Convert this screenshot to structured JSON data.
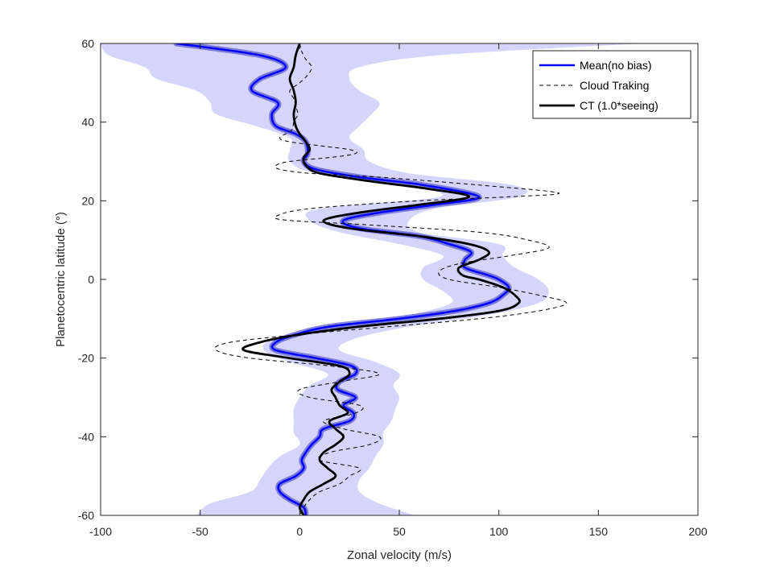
{
  "chart_data": {
    "type": "line",
    "xlabel": "Zonal velocity (m/s)",
    "ylabel": "Planetocentric latitude (°)",
    "xlim": [
      -100,
      200
    ],
    "ylim": [
      -60,
      60
    ],
    "xticks": [
      -100,
      -50,
      0,
      50,
      100,
      150,
      200
    ],
    "yticks": [
      -60,
      -40,
      -20,
      0,
      20,
      40,
      60
    ],
    "xtick_labels": [
      "-100",
      "-50",
      "0",
      "50",
      "100",
      "150",
      "200"
    ],
    "ytick_labels": [
      "-60",
      "-40",
      "-20",
      "0",
      "20",
      "40",
      "60"
    ],
    "grid": false,
    "legend_position": "top-right",
    "band": {
      "latitude": [
        60,
        57,
        54,
        51,
        48,
        45,
        42,
        39,
        36,
        33,
        30,
        27,
        24,
        21,
        18,
        15,
        12,
        9,
        6,
        3,
        0,
        -3,
        -6,
        -9,
        -12,
        -15,
        -18,
        -21,
        -24,
        -27,
        -30,
        -33,
        -36,
        -39,
        -42,
        -45,
        -48,
        -51,
        -54,
        -57,
        -60
      ],
      "lower": [
        -100,
        -96,
        -78,
        -72,
        -52,
        -45,
        -42,
        -22,
        -5,
        -5,
        -5,
        8,
        52,
        70,
        10,
        5,
        20,
        50,
        72,
        62,
        62,
        72,
        76,
        55,
        20,
        -12,
        -18,
        -5,
        14,
        5,
        0,
        -3,
        -3,
        -3,
        0,
        -10,
        -16,
        -20,
        -25,
        -45,
        -52
      ],
      "upper": [
        172,
        70,
        30,
        25,
        30,
        40,
        36,
        30,
        25,
        32,
        35,
        55,
        107,
        110,
        68,
        55,
        60,
        100,
        102,
        108,
        120,
        125,
        120,
        95,
        55,
        28,
        20,
        38,
        50,
        47,
        50,
        48,
        46,
        42,
        42,
        38,
        35,
        30,
        30,
        40,
        58
      ]
    },
    "series": [
      {
        "name": "Mean(no bias)",
        "color": "#0000ff",
        "style": "solid",
        "latitude": [
          60,
          57,
          54,
          51,
          48,
          45,
          42,
          39,
          37,
          35,
          32,
          30,
          28,
          26,
          24,
          21,
          19,
          17,
          15,
          13,
          11,
          9,
          7,
          5,
          3,
          1,
          0,
          -2,
          -4,
          -6,
          -8,
          -10,
          -12,
          -14,
          -16,
          -18,
          -20,
          -22,
          -24,
          -26,
          -28,
          -30,
          -32,
          -34,
          -36,
          -38,
          -40,
          -42,
          -44,
          -46,
          -48,
          -50,
          -52,
          -54,
          -56,
          -58,
          -60
        ],
        "velocity": [
          -62,
          -20,
          -7,
          -20,
          -24,
          -11,
          -14,
          -12,
          -2,
          3,
          4,
          2,
          8,
          30,
          62,
          90,
          68,
          40,
          22,
          30,
          60,
          75,
          86,
          83,
          83,
          95,
          100,
          105,
          102,
          95,
          78,
          50,
          15,
          -2,
          -12,
          -12,
          8,
          26,
          28,
          20,
          19,
          28,
          22,
          27,
          25,
          12,
          10,
          6,
          3,
          1,
          2,
          -2,
          -10,
          -10,
          -5,
          2,
          3
        ]
      },
      {
        "name": "Cloud Traking",
        "color": "#000000",
        "style": "dashed",
        "latitude": [
          60,
          58,
          56,
          54,
          52,
          50,
          48,
          46,
          44,
          42,
          40,
          38,
          36,
          35,
          34,
          33,
          32,
          31,
          30,
          29,
          28,
          27,
          26,
          24,
          22,
          21,
          20,
          18,
          16,
          15,
          14,
          12,
          10,
          8,
          6,
          4,
          2,
          0,
          -2,
          -4,
          -6,
          -8,
          -10,
          -12,
          -14,
          -16,
          -18,
          -20,
          -22,
          -24,
          -26,
          -28,
          -30,
          -32,
          -34,
          -36,
          -38,
          -40,
          -42,
          -44,
          -46,
          -48,
          -50,
          -52,
          -54,
          -56,
          -58,
          -60
        ],
        "velocity": [
          0,
          1,
          3,
          6,
          4,
          0,
          -5,
          -3,
          -2,
          -1,
          -3,
          -4,
          -10,
          -5,
          10,
          25,
          28,
          15,
          -5,
          -12,
          -10,
          5,
          40,
          90,
          130,
          105,
          60,
          5,
          -12,
          -5,
          30,
          90,
          115,
          125,
          105,
          80,
          70,
          75,
          100,
          120,
          134,
          120,
          90,
          45,
          0,
          -35,
          -42,
          -25,
          15,
          40,
          20,
          0,
          5,
          30,
          28,
          12,
          22,
          40,
          35,
          15,
          10,
          30,
          25,
          20,
          10,
          5,
          2,
          0
        ]
      },
      {
        "name": "CT (1.0*seeing)",
        "color": "#000000",
        "style": "solid",
        "latitude": [
          60,
          57,
          54,
          51,
          48,
          45,
          42,
          39,
          37,
          35,
          33,
          31,
          29,
          27,
          25,
          23,
          21,
          19,
          17,
          15,
          13,
          11,
          9,
          7,
          5,
          3,
          1,
          0,
          -2,
          -4,
          -6,
          -8,
          -10,
          -12,
          -14,
          -16,
          -18,
          -20,
          -22,
          -24,
          -26,
          -28,
          -30,
          -32,
          -34,
          -36,
          -38,
          -40,
          -42,
          -44,
          -46,
          -48,
          -50,
          -52,
          -54,
          -56,
          -58,
          -60
        ],
        "velocity": [
          0,
          -2,
          -3,
          -5,
          -3,
          -2,
          -3,
          -2,
          0,
          3,
          5,
          2,
          3,
          10,
          35,
          65,
          85,
          60,
          30,
          12,
          25,
          60,
          85,
          95,
          90,
          80,
          82,
          90,
          102,
          108,
          110,
          100,
          70,
          30,
          0,
          -20,
          -28,
          -5,
          20,
          25,
          20,
          16,
          18,
          20,
          24,
          15,
          18,
          22,
          18,
          12,
          10,
          14,
          18,
          12,
          5,
          2,
          0,
          2
        ]
      }
    ],
    "legend": [
      "Mean(no bias)",
      "Cloud Traking",
      "CT (1.0*seeing)"
    ],
    "colors": {
      "band_fill": "#d5d5fb",
      "mean_halo": "#5b5bd6",
      "mean_line": "#0000ff",
      "ct_line": "#000000",
      "axis": "#262626"
    }
  }
}
